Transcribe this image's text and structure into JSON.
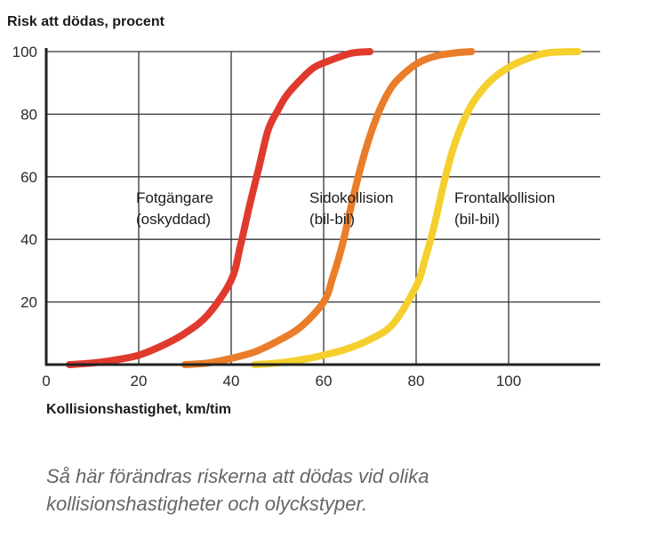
{
  "chart_data": {
    "type": "line",
    "title": "",
    "ylabel": "Risk att dödas, procent",
    "xlabel": "Kollisionshastighet, km/tim",
    "xlim": [
      0,
      120
    ],
    "ylim": [
      0,
      100
    ],
    "x_ticks": [
      0,
      20,
      40,
      60,
      80,
      100
    ],
    "y_ticks": [
      20,
      40,
      60,
      80,
      100
    ],
    "grid": true,
    "series": [
      {
        "name_lines": [
          "Fotgängare",
          "(oskyddad)"
        ],
        "color": "#e03a2f",
        "x": [
          5,
          10,
          15,
          20,
          25,
          30,
          35,
          40,
          42,
          44,
          46,
          48,
          50,
          52,
          55,
          58,
          62,
          66,
          70
        ],
        "y": [
          0,
          0.5,
          1.5,
          3,
          6,
          10,
          16,
          27,
          38,
          51,
          63,
          75,
          81,
          86,
          91,
          95,
          97.5,
          99.5,
          100
        ]
      },
      {
        "name_lines": [
          "Sidokollision",
          "(bil-bil)"
        ],
        "color": "#ea7d2a",
        "x": [
          30,
          35,
          40,
          45,
          50,
          55,
          60,
          62,
          64,
          66,
          68,
          70,
          72,
          74,
          76,
          80,
          84,
          88,
          92
        ],
        "y": [
          0,
          0.5,
          2,
          4,
          7.5,
          12,
          20,
          28,
          38,
          51,
          63,
          73,
          81,
          87,
          91,
          96,
          98.5,
          99.5,
          100
        ]
      },
      {
        "name_lines": [
          "Frontalkollision",
          "(bil-bil)"
        ],
        "color": "#f5cf2e",
        "x": [
          45,
          50,
          55,
          60,
          65,
          70,
          75,
          80,
          82,
          84,
          86,
          88,
          90,
          92,
          95,
          98,
          102,
          108,
          115
        ],
        "y": [
          0,
          0.5,
          1.5,
          3,
          5,
          8,
          13,
          25,
          34,
          45,
          58,
          69,
          77,
          83,
          89,
          93,
          96.5,
          99.5,
          100
        ]
      }
    ]
  },
  "caption_lines": [
    "Så här förändras riskerna att dödas vid olika",
    "kollisionshastigheter och olyckstyper."
  ]
}
